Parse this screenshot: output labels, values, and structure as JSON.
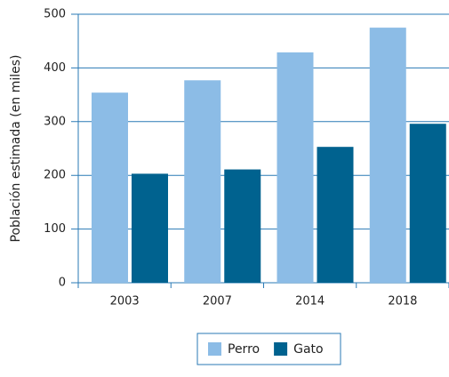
{
  "chart_data": {
    "type": "bar",
    "ylabel": "Población estimada (en miles)",
    "categories": [
      "2003",
      "2007",
      "2014",
      "2018"
    ],
    "series": [
      {
        "name": "Perro",
        "color": "#8cbce6",
        "values": [
          354,
          377,
          429,
          475
        ]
      },
      {
        "name": "Gato",
        "color": "#00628f",
        "values": [
          203,
          211,
          253,
          296
        ]
      }
    ],
    "ylim": [
      0,
      500
    ],
    "yticks": [
      0,
      100,
      200,
      300,
      400,
      500
    ],
    "grid": true,
    "legend": "bottom"
  }
}
